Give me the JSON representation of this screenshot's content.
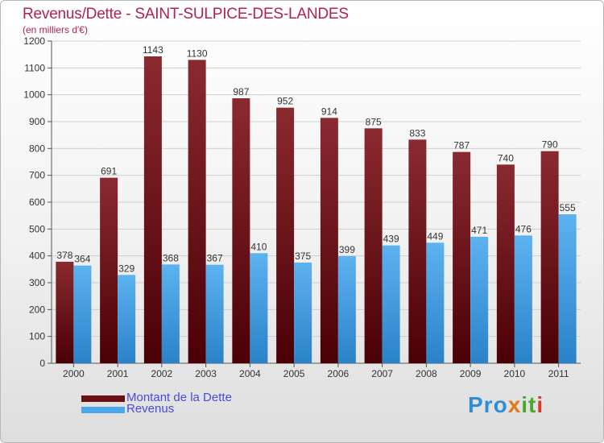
{
  "header": {
    "title": "Revenus/Dette - SAINT-SULPICE-DES-LANDES",
    "subtitle": "(en milliers d'€)"
  },
  "chart_data": {
    "type": "bar",
    "title": "Revenus/Dette - SAINT-SULPICE-DES-LANDES",
    "ylabel": "(en milliers d'€)",
    "xlabel": "",
    "categories": [
      "2000",
      "2001",
      "2002",
      "2003",
      "2004",
      "2005",
      "2006",
      "2007",
      "2008",
      "2009",
      "2010",
      "2011"
    ],
    "series": [
      {
        "name": "Montant de la Dette",
        "color": "#7a1a1f",
        "values": [
          378,
          691,
          1143,
          1130,
          987,
          952,
          914,
          875,
          833,
          787,
          740,
          790
        ]
      },
      {
        "name": "Revenus",
        "color": "#3f9fe6",
        "values": [
          364,
          329,
          368,
          367,
          410,
          375,
          399,
          439,
          449,
          471,
          476,
          555
        ]
      }
    ],
    "ylim": [
      0,
      1200
    ],
    "yticks": [
      "0",
      "100",
      "200",
      "300",
      "400",
      "500",
      "600",
      "700",
      "800",
      "900",
      "1000",
      "1100",
      "1200"
    ],
    "grid": true,
    "legend": "bottom-left"
  },
  "legend": {
    "debt_label": "Montant de la Dette",
    "revenue_label": "Revenus",
    "debt_color": "#6a0f14",
    "revenue_color": "#4aa8ea"
  },
  "logo": {
    "part1": "Pro",
    "part2": "x",
    "part3": "it",
    "part4": "i"
  }
}
